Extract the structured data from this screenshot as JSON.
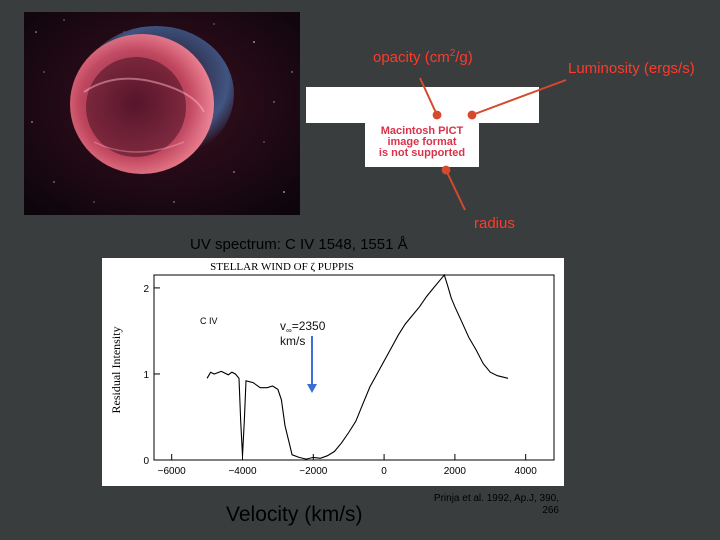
{
  "labels": {
    "opacity": "opacity (cm2/g)",
    "opacity_main": "opacity (cm",
    "opacity_sup": "2",
    "opacity_end": "/g)",
    "luminosity": "Luminosity (ergs/s)",
    "radius": "radius",
    "uv_spectrum": "UV spectrum: C IV 1548, 1551 Å",
    "velocity_axis": "Velocity  (km/s)",
    "citation": "Prinja et al. 1992, Ap.J, 390, 266"
  },
  "placeholder": {
    "line1": "Macintosh PICT",
    "line2": "image format",
    "line3": "is not supported"
  },
  "plot": {
    "title": "STELLAR WIND OF ζ PUPPIS",
    "ylabel": "Residual Intensity",
    "ion": "C IV",
    "vinf_label": "v∞=2350",
    "vinf_main": "v",
    "vinf_sub": "∞",
    "vinf_value": "=2350",
    "vinf_units": "km/s"
  },
  "chart_data": {
    "type": "line",
    "title": "STELLAR WIND OF ζ PUPPIS",
    "xlabel": "Velocity  (km/s)",
    "ylabel": "Residual Intensity",
    "xlim": [
      -6500,
      4800
    ],
    "ylim": [
      0,
      2.15
    ],
    "x_ticks": [
      -6000,
      -4000,
      -2000,
      0,
      2000,
      4000
    ],
    "y_ticks": [
      0,
      1,
      2
    ],
    "annotation": {
      "text": "v∞=2350 km/s",
      "x": -2350
    },
    "series": [
      {
        "x": [
          -5000,
          -4900,
          -4800,
          -4600,
          -4400,
          -4300,
          -4200,
          -4100,
          -4050,
          -4000,
          -3950,
          -3900,
          -3700,
          -3500,
          -3300,
          -3150,
          -3000,
          -2900,
          -2800,
          -2600,
          -2400,
          -2200,
          -2000,
          -1800,
          -1600,
          -1400,
          -1200,
          -1000,
          -800,
          -600,
          -400,
          -200,
          0,
          200,
          400,
          600,
          800,
          1000,
          1200,
          1400,
          1600,
          1700,
          1800,
          1900,
          2000,
          2200,
          2400,
          2600,
          2800,
          3000,
          3200,
          3500
        ],
        "y": [
          0.95,
          1.02,
          1.0,
          1.03,
          0.99,
          1.02,
          1.0,
          0.95,
          0.45,
          0.05,
          0.45,
          0.92,
          0.9,
          0.84,
          0.84,
          0.86,
          0.82,
          0.7,
          0.4,
          0.06,
          0.03,
          0.01,
          0.03,
          0.02,
          0.05,
          0.1,
          0.2,
          0.32,
          0.45,
          0.65,
          0.85,
          1.0,
          1.15,
          1.3,
          1.45,
          1.58,
          1.68,
          1.78,
          1.9,
          2.0,
          2.1,
          2.15,
          2.02,
          1.88,
          1.78,
          1.6,
          1.42,
          1.28,
          1.12,
          1.02,
          0.98,
          0.95
        ]
      }
    ]
  }
}
